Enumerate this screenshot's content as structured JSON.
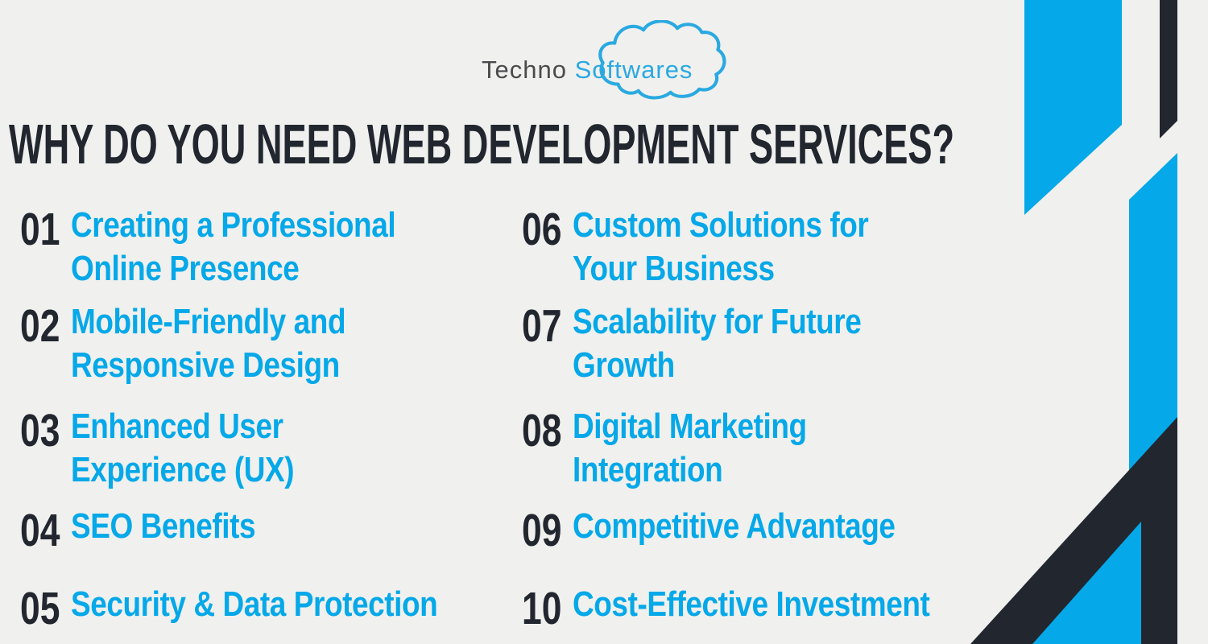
{
  "logo": {
    "part1": "Techno",
    "part2": "Softwares",
    "cloud_icon": "cloud-outline-icon"
  },
  "title": "WHY DO YOU NEED WEB DEVELOPMENT SERVICES?",
  "items": [
    {
      "num": "01",
      "lines": [
        "Creating a Professional",
        "Online Presence"
      ]
    },
    {
      "num": "02",
      "lines": [
        "Mobile-Friendly and",
        "Responsive Design"
      ]
    },
    {
      "num": "03",
      "lines": [
        "Enhanced User",
        "Experience (UX)"
      ]
    },
    {
      "num": "04",
      "lines": [
        "SEO Benefits"
      ]
    },
    {
      "num": "05",
      "lines": [
        "Security & Data Protection"
      ]
    },
    {
      "num": "06",
      "lines": [
        "Custom Solutions for",
        "Your Business"
      ]
    },
    {
      "num": "07",
      "lines": [
        "Scalability for Future",
        "Growth"
      ]
    },
    {
      "num": "08",
      "lines": [
        "Digital Marketing",
        "Integration"
      ]
    },
    {
      "num": "09",
      "lines": [
        "Competitive Advantage"
      ]
    },
    {
      "num": "10",
      "lines": [
        "Cost-Effective Investment"
      ]
    }
  ],
  "colors": {
    "accent_blue": "#05a8e8",
    "dark_navy": "#22262f",
    "background": "#f0f0ee",
    "logo_text_gray": "#4b4b4d",
    "logo_blue": "#2aa9e1"
  }
}
